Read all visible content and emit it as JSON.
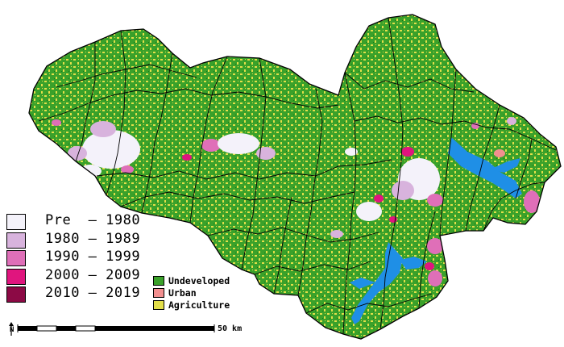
{
  "map": {
    "colors": {
      "undeveloped": "#3aa12a",
      "agriculture": "#e3df4a",
      "urban": "#f28f8f",
      "water": "#1f8fe6",
      "boundary": "#000000"
    }
  },
  "legend_periods": [
    {
      "label": "Pre  – 1980",
      "color": "#f4f2fa"
    },
    {
      "label": "1980 – 1989",
      "color": "#d8b3dd"
    },
    {
      "label": "1990 – 1999",
      "color": "#df6fb8"
    },
    {
      "label": "2000 – 2009",
      "color": "#e0157e"
    },
    {
      "label": "2010 – 2019",
      "color": "#8c0a45"
    }
  ],
  "legend_landcover": [
    {
      "label": "Undeveloped",
      "color": "#3aa12a"
    },
    {
      "label": "Urban",
      "color": "#f28f8f"
    },
    {
      "label": "Agriculture",
      "color": "#e3df4a"
    }
  ],
  "scale": {
    "label": "50 km",
    "north": "N"
  }
}
